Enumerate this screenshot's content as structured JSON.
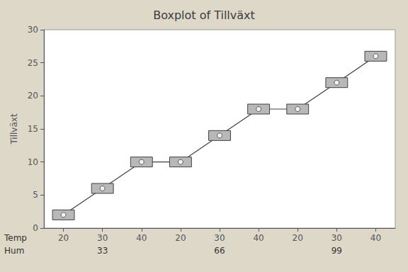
{
  "chart_data": {
    "type": "line",
    "title": "Boxplot of Tillväxt",
    "ylabel": "Tillväxt",
    "categories": [
      "20",
      "30",
      "40",
      "20",
      "30",
      "40",
      "20",
      "30",
      "40"
    ],
    "values": [
      2,
      6,
      10,
      10,
      14,
      18,
      18,
      22,
      26
    ],
    "box_half_height": 0.75,
    "groups": [
      "33",
      "66",
      "99"
    ],
    "row_labels": [
      "Temp",
      "Hum"
    ],
    "marker": "box",
    "color": "#404040",
    "ylim": [
      0,
      30
    ],
    "yticks": [
      0,
      5,
      10,
      15,
      20,
      25,
      30
    ],
    "grid": false
  }
}
